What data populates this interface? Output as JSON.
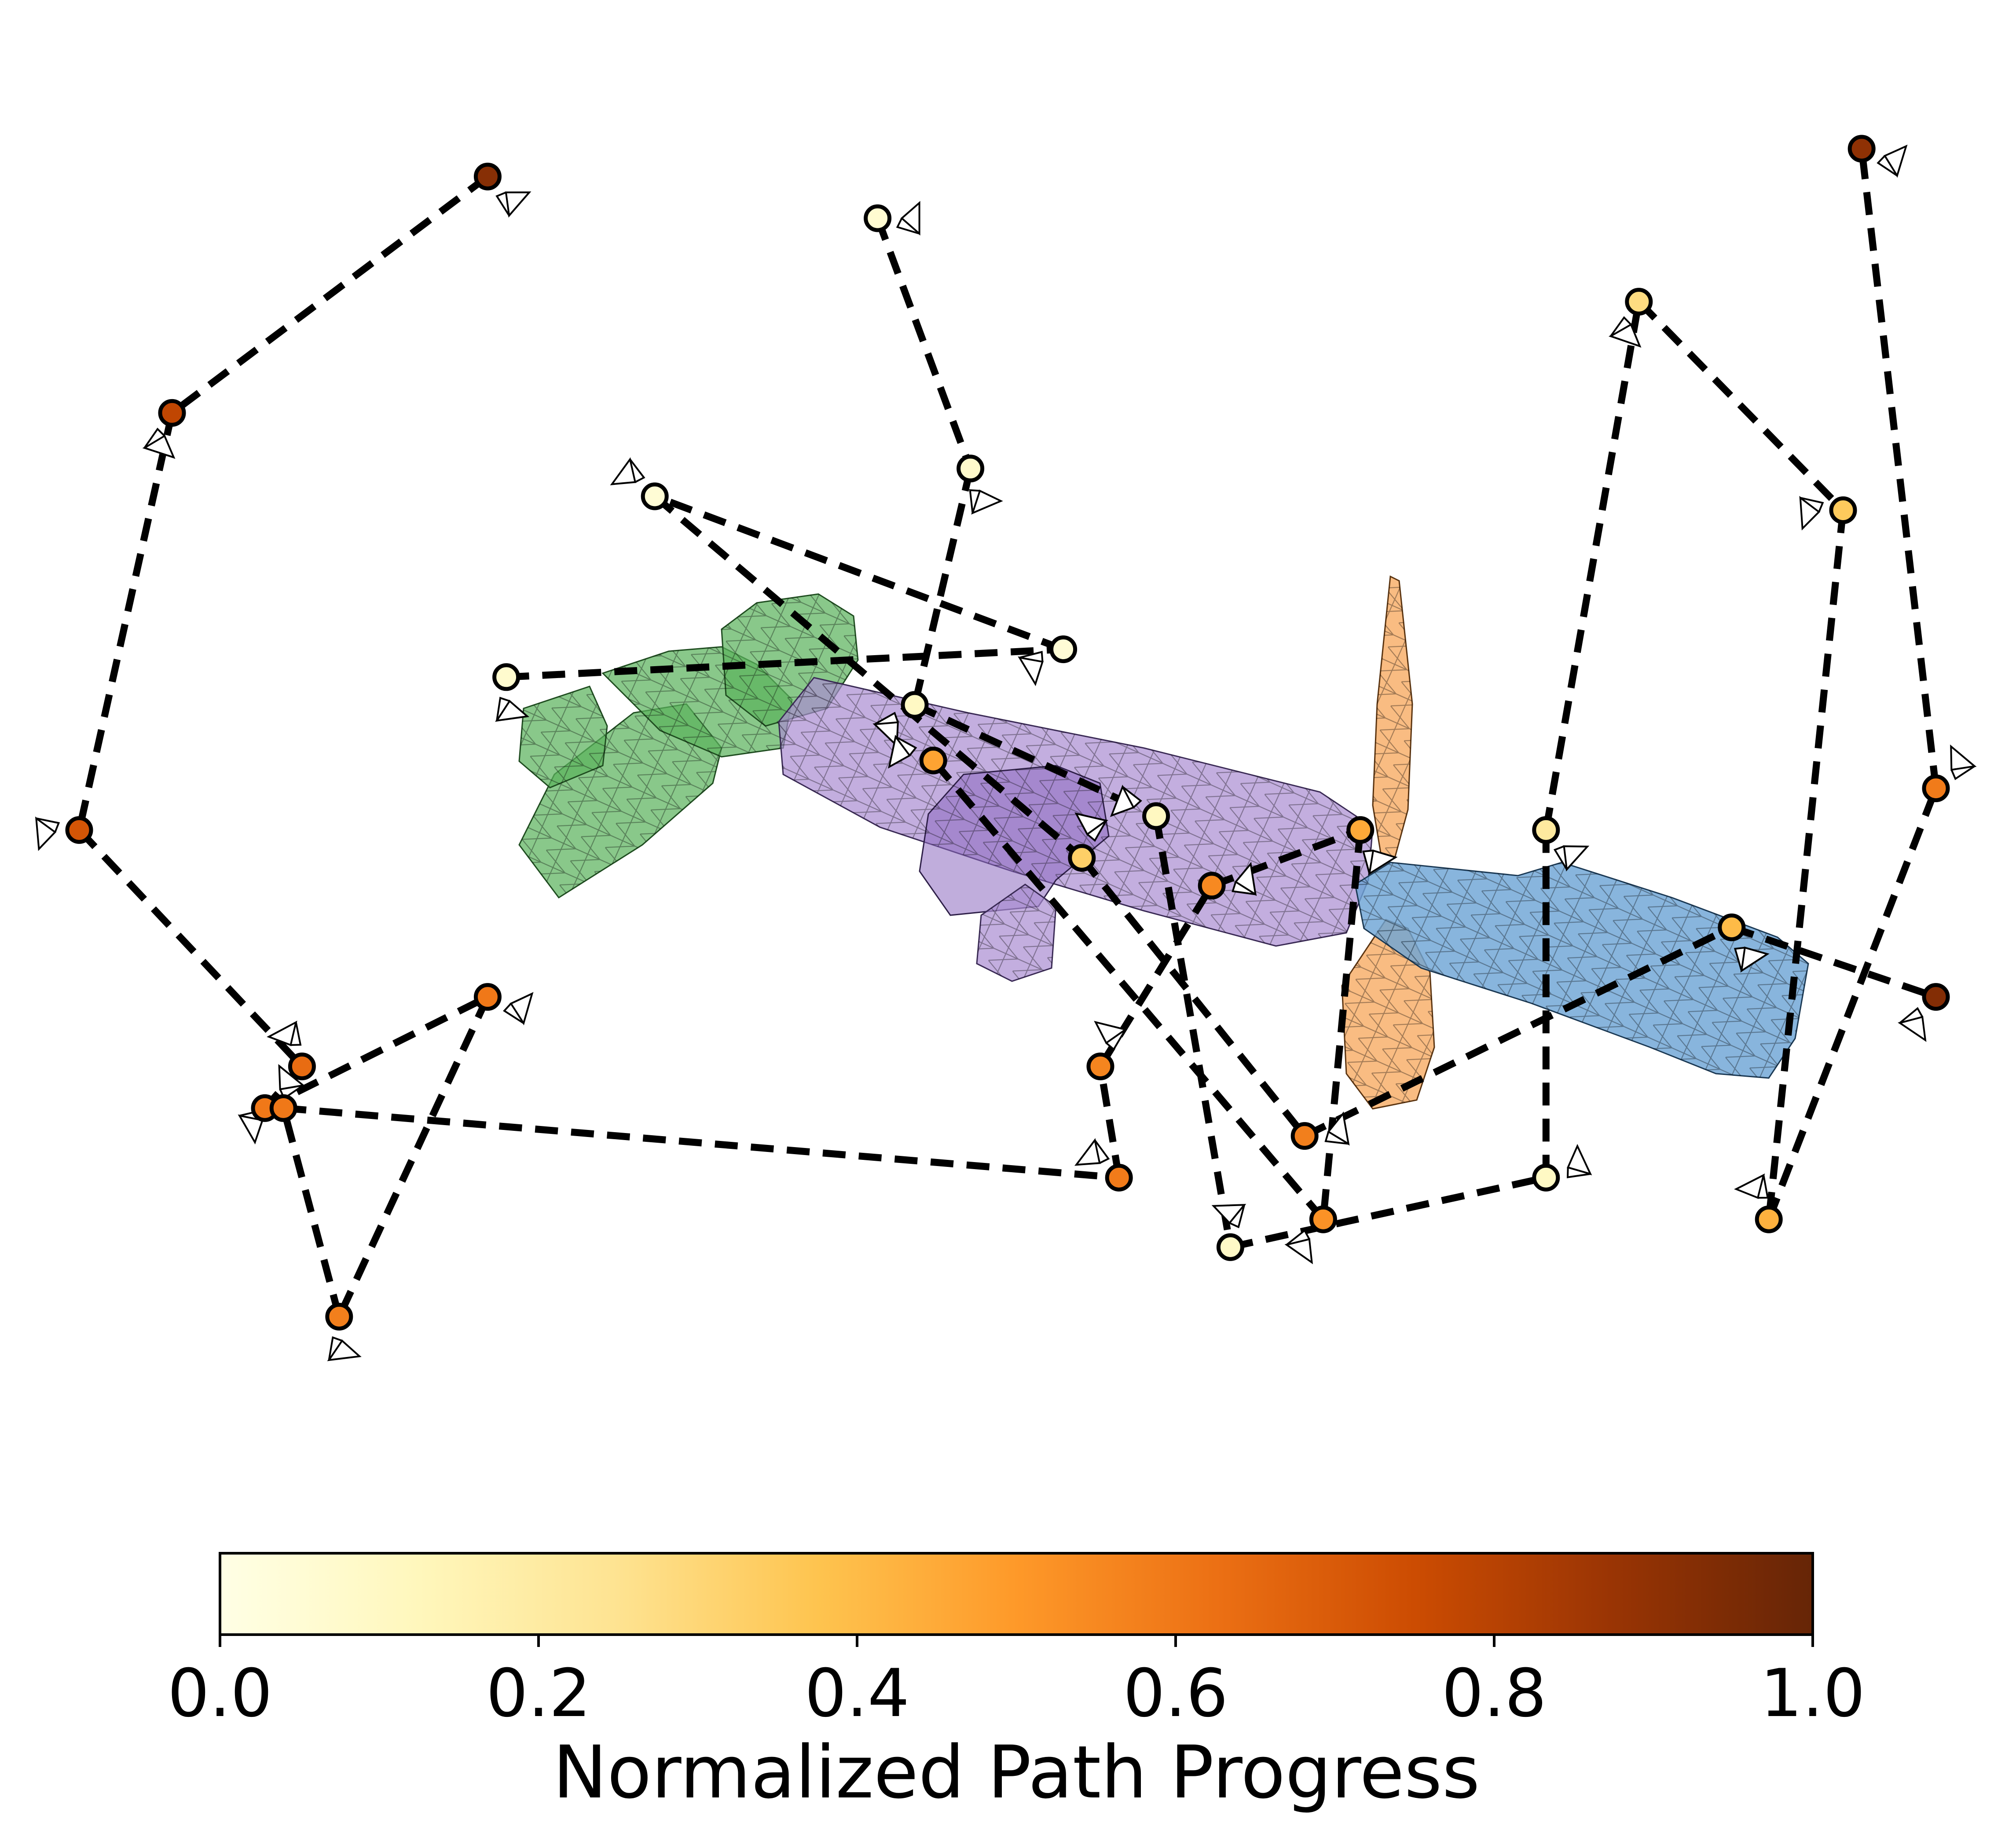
{
  "chart_data": {
    "type": "scatter",
    "description_of_marks": "camera waypoints joined by a dashed path, colored by path progress",
    "colormap": {
      "name": "YlOrBr",
      "stops": [
        "#ffffe5",
        "#fff7bc",
        "#fee391",
        "#fec44f",
        "#fe9929",
        "#ec7014",
        "#cc4c02",
        "#993404",
        "#662506"
      ],
      "range": [
        0.0,
        1.0
      ],
      "ticks": [
        "0.0",
        "0.2",
        "0.4",
        "0.6",
        "0.8",
        "1.0"
      ],
      "label": "Normalized Path Progress"
    },
    "paths": [
      {
        "points": [
          {
            "x": 0.43,
            "y": 0.9,
            "p": 0.06
          },
          {
            "x": 0.48,
            "y": 0.72,
            "p": 0.08
          },
          {
            "x": 0.45,
            "y": 0.55,
            "p": 0.1
          },
          {
            "x": 0.58,
            "y": 0.47,
            "p": 0.11
          },
          {
            "x": 0.62,
            "y": 0.16,
            "p": 0.09
          },
          {
            "x": 0.79,
            "y": 0.21,
            "p": 0.1
          },
          {
            "x": 0.79,
            "y": 0.46,
            "p": 0.21
          },
          {
            "x": 0.84,
            "y": 0.84,
            "p": 0.28
          },
          {
            "x": 0.95,
            "y": 0.69,
            "p": 0.35
          },
          {
            "x": 0.91,
            "y": 0.18,
            "p": 0.43
          },
          {
            "x": 1.0,
            "y": 0.49,
            "p": 0.59
          },
          {
            "x": 0.96,
            "y": 0.95,
            "p": 0.9
          }
        ]
      },
      {
        "points": [
          {
            "x": 0.22,
            "y": 0.93,
            "p": 0.92
          },
          {
            "x": 0.05,
            "y": 0.76,
            "p": 0.78
          },
          {
            "x": 0.0,
            "y": 0.46,
            "p": 0.72
          },
          {
            "x": 0.12,
            "y": 0.29,
            "p": 0.64
          },
          {
            "x": 0.1,
            "y": 0.26,
            "p": 0.6
          },
          {
            "x": 0.22,
            "y": 0.34,
            "p": 0.6
          },
          {
            "x": 0.14,
            "y": 0.11,
            "p": 0.58
          },
          {
            "x": 0.11,
            "y": 0.26,
            "p": 0.6
          },
          {
            "x": 0.56,
            "y": 0.21,
            "p": 0.59
          },
          {
            "x": 0.55,
            "y": 0.29,
            "p": 0.56
          },
          {
            "x": 0.61,
            "y": 0.42,
            "p": 0.55
          },
          {
            "x": 0.69,
            "y": 0.46,
            "p": 0.45
          },
          {
            "x": 0.67,
            "y": 0.18,
            "p": 0.52
          },
          {
            "x": 0.46,
            "y": 0.51,
            "p": 0.47
          }
        ]
      },
      {
        "points": [
          {
            "x": 0.23,
            "y": 0.57,
            "p": 0.07
          },
          {
            "x": 0.53,
            "y": 0.59,
            "p": 0.05
          },
          {
            "x": 0.31,
            "y": 0.7,
            "p": 0.05
          },
          {
            "x": 0.54,
            "y": 0.44,
            "p": 0.33
          },
          {
            "x": 0.66,
            "y": 0.24,
            "p": 0.58
          },
          {
            "x": 0.89,
            "y": 0.39,
            "p": 0.4
          },
          {
            "x": 1.0,
            "y": 0.34,
            "p": 0.93
          }
        ]
      }
    ],
    "meshes": [
      {
        "label": "",
        "color": "#5bb35d"
      },
      {
        "label": "",
        "color": "#a98bd2"
      },
      {
        "label": "",
        "color": "#f7a95f"
      },
      {
        "label": "",
        "color": "#6ea5d6"
      }
    ]
  }
}
